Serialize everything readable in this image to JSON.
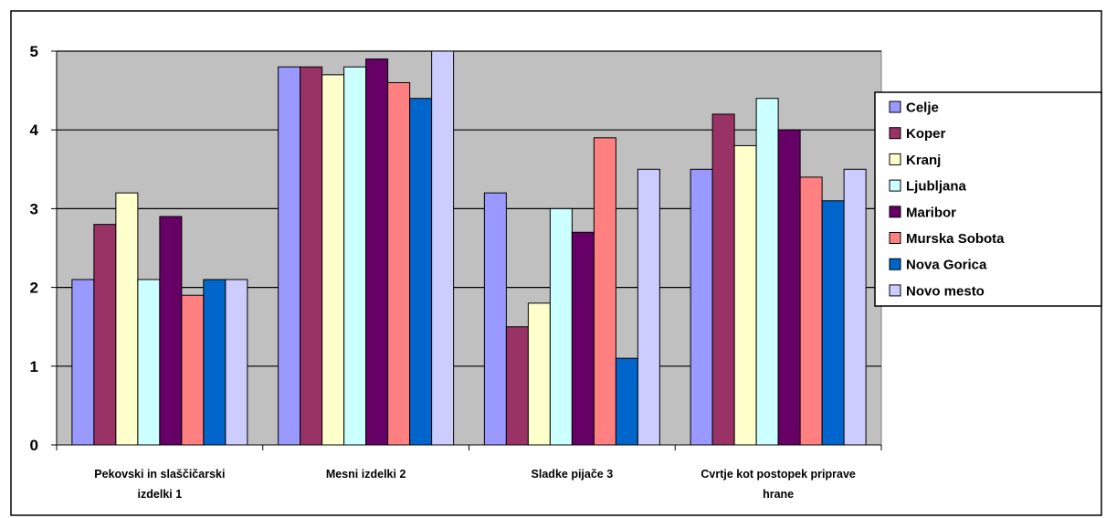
{
  "chart_data": {
    "type": "bar",
    "categories": [
      "Pekovski in slaščičarski izdelki 1",
      "Mesni izdelki 2",
      "Sladke pijače 3",
      "Cvrtje kot postopek priprave hrane"
    ],
    "category_label_lines": [
      [
        "Pekovski in slaščičarski",
        "izdelki 1"
      ],
      [
        "Mesni izdelki 2"
      ],
      [
        "Sladke pijače 3"
      ],
      [
        "Cvrtje kot postopek priprave",
        "hrane"
      ]
    ],
    "series": [
      {
        "name": "Celje",
        "color": "#9999FF",
        "values": [
          2.1,
          4.8,
          3.2,
          3.5
        ]
      },
      {
        "name": "Koper",
        "color": "#993366",
        "values": [
          2.8,
          4.8,
          1.5,
          4.2
        ]
      },
      {
        "name": "Kranj",
        "color": "#FFFFCC",
        "values": [
          3.2,
          4.7,
          1.8,
          3.8
        ]
      },
      {
        "name": "Ljubljana",
        "color": "#CCFFFF",
        "values": [
          2.1,
          4.8,
          3.0,
          4.4
        ]
      },
      {
        "name": "Maribor",
        "color": "#660066",
        "values": [
          2.9,
          4.9,
          2.7,
          4.0
        ]
      },
      {
        "name": "Murska Sobota",
        "color": "#FF8080",
        "values": [
          1.9,
          4.6,
          3.9,
          3.4
        ]
      },
      {
        "name": "Nova Gorica",
        "color": "#0066CC",
        "values": [
          2.1,
          4.4,
          1.1,
          3.1
        ]
      },
      {
        "name": "Novo mesto",
        "color": "#CCCCFF",
        "values": [
          2.1,
          5.0,
          3.5,
          3.5
        ]
      }
    ],
    "ylim": [
      0,
      5
    ],
    "yticks": [
      "0",
      "1",
      "2",
      "3",
      "4",
      "5"
    ],
    "grid": true,
    "plot_background": "#C0C0C0",
    "legend_position": "right"
  }
}
